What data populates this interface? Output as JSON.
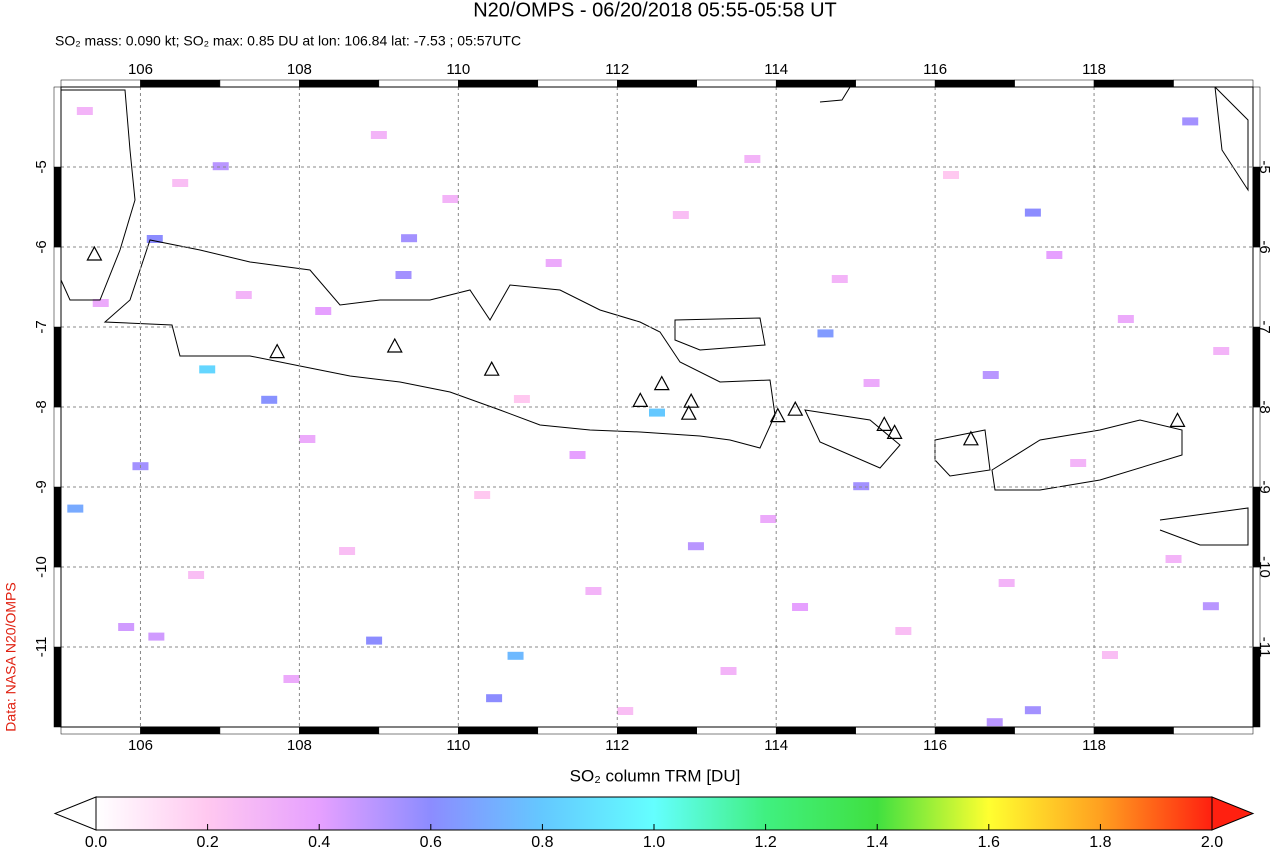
{
  "chart_data": {
    "type": "map",
    "title": "N20/OMPS - 06/20/2018 05:55-05:58 UT",
    "subtitle": "SO₂ mass: 0.090 kt; SO₂ max: 0.85 DU at lon: 106.84 lat: -7.53 ; 05:57UTC",
    "side_label": "Data: NASA N20/OMPS",
    "xlim": [
      105,
      120
    ],
    "ylim": [
      -12,
      -4
    ],
    "xticks": [
      106,
      108,
      110,
      112,
      114,
      116,
      118
    ],
    "yticks": [
      -5,
      -6,
      -7,
      -8,
      -9,
      -10,
      -11
    ],
    "grid": true,
    "colorbar": {
      "label": "SO₂ column TRM [DU]",
      "clim": [
        0,
        2
      ],
      "ticks": [
        {
          "value": 0,
          "label": "0.0"
        },
        0.2,
        0.4,
        0.6,
        0.8,
        {
          "value": 1,
          "label": "1.0"
        },
        1.2,
        1.4,
        1.6,
        1.8,
        {
          "value": 2,
          "label": "2.0"
        }
      ],
      "colors": [
        "#ffffff",
        "#ffc8f0",
        "#e6a0ff",
        "#8c8cff",
        "#64c8ff",
        "#64ffff",
        "#40f080",
        "#40e040",
        "#ffff30",
        "#ffa020",
        "#ff2010"
      ]
    },
    "pixels": {
      "lon": [
        106.84,
        107.62,
        112.5,
        105.18,
        106.0,
        106.18,
        109.38,
        109.31,
        107.01,
        110.72,
        110.45,
        108.94,
        117.23,
        119.21,
        116.7,
        112.99,
        115.07,
        119.47,
        114.62,
        117.23,
        116.75,
        105.82,
        106.2,
        105.3,
        105.5,
        106.5,
        107.3,
        108.1,
        108.6,
        109.9,
        110.3,
        111.2,
        111.7,
        112.8,
        113.4,
        113.9,
        114.8,
        115.6,
        116.2,
        117.8,
        118.4,
        119.0,
        106.7,
        107.9,
        109.0,
        110.8,
        112.1,
        113.7,
        115.2,
        116.9,
        118.2,
        119.6,
        108.3,
        111.5,
        114.3,
        117.5
      ],
      "lat": [
        -7.53,
        -7.91,
        -8.07,
        -9.27,
        -8.74,
        -5.9,
        -5.89,
        -6.35,
        -4.99,
        -11.11,
        -11.64,
        -10.92,
        -5.57,
        -4.43,
        -7.6,
        -9.74,
        -8.99,
        -10.49,
        -7.08,
        -11.79,
        -11.94,
        -10.75,
        -10.87,
        -4.3,
        -6.7,
        -5.2,
        -6.6,
        -8.4,
        -9.8,
        -5.4,
        -9.1,
        -6.2,
        -10.3,
        -5.6,
        -11.3,
        -9.4,
        -6.4,
        -10.8,
        -5.1,
        -8.7,
        -6.9,
        -9.9,
        -10.1,
        -11.4,
        -4.6,
        -7.9,
        -11.8,
        -4.9,
        -7.7,
        -10.2,
        -11.1,
        -7.3,
        -6.8,
        -8.6,
        -10.5,
        -6.1
      ],
      "values": [
        0.85,
        0.62,
        0.8,
        0.7,
        0.55,
        0.6,
        0.55,
        0.55,
        0.5,
        0.75,
        0.6,
        0.6,
        0.6,
        0.55,
        0.5,
        0.5,
        0.55,
        0.5,
        0.65,
        0.55,
        0.5,
        0.45,
        0.45,
        0.3,
        0.35,
        0.25,
        0.3,
        0.35,
        0.25,
        0.3,
        0.2,
        0.35,
        0.3,
        0.25,
        0.3,
        0.35,
        0.3,
        0.25,
        0.2,
        0.3,
        0.35,
        0.3,
        0.25,
        0.35,
        0.3,
        0.2,
        0.25,
        0.3,
        0.35,
        0.3,
        0.25,
        0.3,
        0.4,
        0.4,
        0.4,
        0.4
      ]
    },
    "volcanoes": {
      "lon": [
        105.42,
        107.72,
        109.2,
        110.42,
        112.29,
        112.56,
        112.93,
        112.9,
        114.02,
        114.24,
        115.36,
        115.49,
        116.45,
        119.05
      ],
      "lat": [
        -6.1,
        -7.32,
        -7.25,
        -7.54,
        -7.93,
        -7.72,
        -7.94,
        -8.09,
        -8.12,
        -8.04,
        -8.23,
        -8.33,
        -8.41,
        -8.18
      ]
    }
  }
}
